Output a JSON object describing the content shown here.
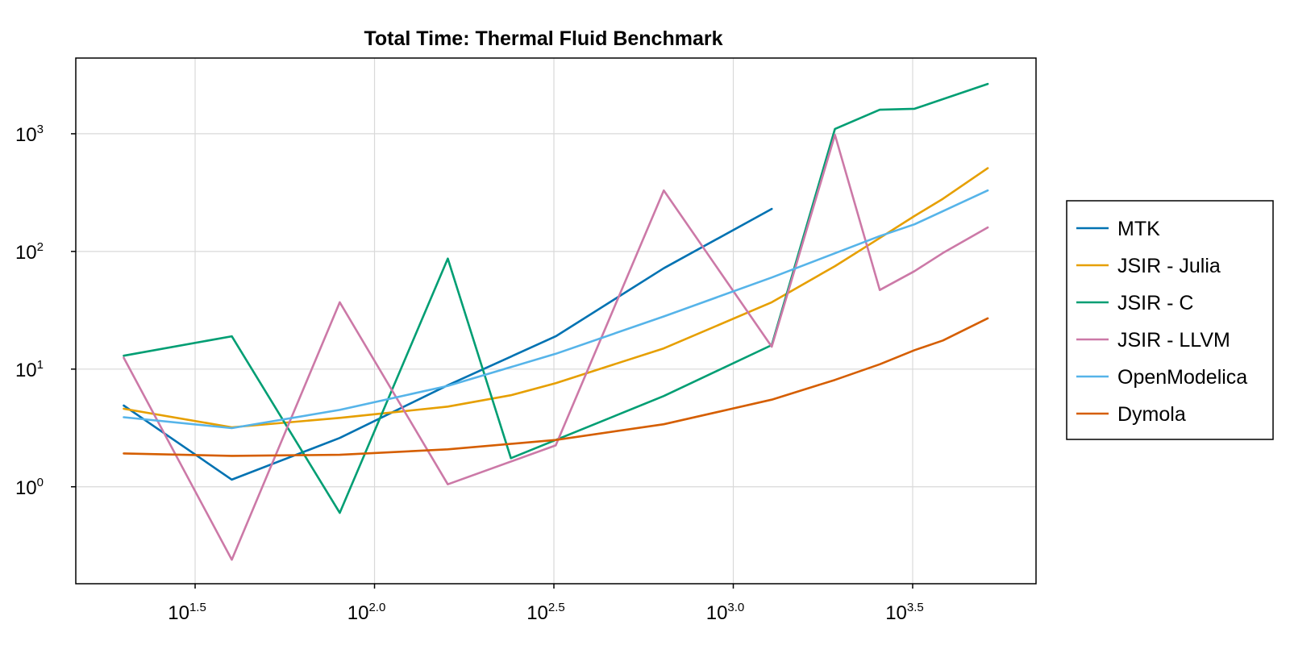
{
  "chart_data": {
    "type": "line",
    "title": "Total Time: Thermal Fluid Benchmark",
    "xlabel": "",
    "ylabel": "",
    "x_scale": "log10",
    "y_scale": "log10",
    "xlim": [
      14.7,
      6980
    ],
    "ylim": [
      0.15,
      4400
    ],
    "x_ticks": [
      {
        "value": 31.62,
        "base": "10",
        "exp": "1.5"
      },
      {
        "value": 100,
        "base": "10",
        "exp": "2.0"
      },
      {
        "value": 316.2,
        "base": "10",
        "exp": "2.5"
      },
      {
        "value": 1000,
        "base": "10",
        "exp": "3.0"
      },
      {
        "value": 3162,
        "base": "10",
        "exp": "3.5"
      }
    ],
    "y_ticks": [
      {
        "value": 1,
        "base": "10",
        "exp": "0"
      },
      {
        "value": 10,
        "base": "10",
        "exp": "1"
      },
      {
        "value": 100,
        "base": "10",
        "exp": "2"
      },
      {
        "value": 1000,
        "base": "10",
        "exp": "3"
      }
    ],
    "grid": true,
    "legend_position": "right",
    "series": [
      {
        "name": "MTK",
        "color": "#0072b2",
        "x": [
          20,
          40,
          80,
          160,
          320,
          640,
          1280
        ],
        "y": [
          4.9,
          1.15,
          2.6,
          7.3,
          19,
          72,
          230
        ]
      },
      {
        "name": "JSIR - Julia",
        "color": "#e69f00",
        "x": [
          20,
          40,
          80,
          160,
          240,
          320,
          640,
          1280,
          1920,
          2560,
          3200,
          3840,
          5120
        ],
        "y": [
          4.6,
          3.2,
          3.85,
          4.8,
          6.0,
          7.6,
          15,
          37,
          75,
          130,
          200,
          280,
          510
        ]
      },
      {
        "name": "JSIR - C",
        "color": "#009e73",
        "x": [
          20,
          40,
          80,
          160,
          240,
          320,
          640,
          1280,
          1920,
          2560,
          3200,
          5120
        ],
        "y": [
          13,
          19,
          0.6,
          87,
          1.75,
          2.5,
          5.9,
          16,
          1100,
          1600,
          1630,
          2650
        ]
      },
      {
        "name": "JSIR - LLVM",
        "color": "#cc79a7",
        "x": [
          20,
          40,
          80,
          160,
          320,
          640,
          1280,
          1920,
          2560,
          3200,
          3840,
          5120
        ],
        "y": [
          12.5,
          0.24,
          37,
          1.05,
          2.25,
          330,
          15.5,
          980,
          47,
          68,
          97,
          160
        ]
      },
      {
        "name": "OpenModelica",
        "color": "#56b4e9",
        "x": [
          20,
          40,
          80,
          160,
          320,
          640,
          1280,
          2560,
          3200,
          3840,
          5120
        ],
        "y": [
          3.9,
          3.15,
          4.5,
          7.2,
          13.5,
          28,
          60,
          135,
          170,
          220,
          330
        ]
      },
      {
        "name": "Dymola",
        "color": "#d55e00",
        "x": [
          20,
          40,
          80,
          160,
          320,
          640,
          1280,
          1920,
          2560,
          3200,
          3840,
          5120
        ],
        "y": [
          1.92,
          1.83,
          1.87,
          2.08,
          2.5,
          3.4,
          5.5,
          8.1,
          11,
          14.5,
          17.5,
          27
        ]
      }
    ]
  }
}
